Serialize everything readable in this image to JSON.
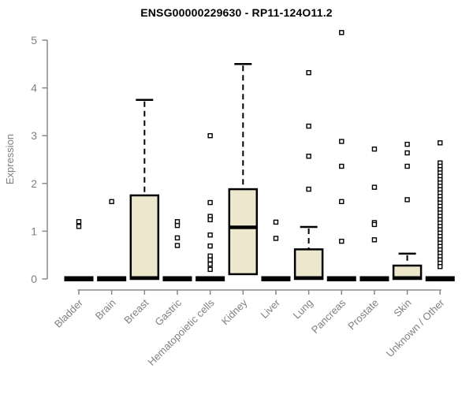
{
  "chart_data": {
    "type": "boxplot",
    "title": "ENSG00000229630 - RP11-124O11.2",
    "ylabel": "Expression",
    "xlabel": "",
    "ylim": [
      0,
      5
    ],
    "yticks": [
      0,
      1,
      2,
      3,
      4,
      5
    ],
    "grid": false,
    "legend": "none",
    "box_fill": "#ede8cd",
    "box_stroke": "#000000",
    "axis_color": "#888888",
    "label_color": "#808080",
    "title_color": "#000000",
    "categories": [
      "Bladder",
      "Brain",
      "Breast",
      "Gastric",
      "Hematopoietic cells",
      "Kidney",
      "Liver",
      "Lung",
      "Pancreas",
      "Prostate",
      "Skin",
      "Unknown / Other"
    ],
    "series": [
      {
        "category": "Bladder",
        "q1": 0,
        "median": 0,
        "q3": 0,
        "whisker_low": 0,
        "whisker_high": 0,
        "outliers": [
          1.2,
          1.1
        ]
      },
      {
        "category": "Brain",
        "q1": 0,
        "median": 0,
        "q3": 0,
        "whisker_low": 0,
        "whisker_high": 0,
        "outliers": [
          1.62
        ]
      },
      {
        "category": "Breast",
        "q1": 0,
        "median": 0.02,
        "q3": 1.75,
        "whisker_low": 0,
        "whisker_high": 3.75,
        "outliers": []
      },
      {
        "category": "Gastric",
        "q1": 0,
        "median": 0,
        "q3": 0,
        "whisker_low": 0,
        "whisker_high": 0,
        "outliers": [
          1.2,
          1.12,
          0.86,
          0.7
        ]
      },
      {
        "category": "Hematopoietic cells",
        "q1": 0,
        "median": 0,
        "q3": 0,
        "whisker_low": 0,
        "whisker_high": 0,
        "outliers": [
          3.0,
          1.6,
          1.31,
          1.24,
          0.92,
          0.69,
          0.48,
          0.4,
          0.31,
          0.2
        ]
      },
      {
        "category": "Kidney",
        "q1": 0.1,
        "median": 1.08,
        "q3": 1.88,
        "whisker_low": 0.1,
        "whisker_high": 4.5,
        "outliers": []
      },
      {
        "category": "Liver",
        "q1": 0,
        "median": 0,
        "q3": 0,
        "whisker_low": 0,
        "whisker_high": 0,
        "outliers": [
          1.19,
          0.85
        ]
      },
      {
        "category": "Lung",
        "q1": 0,
        "median": 0.02,
        "q3": 0.62,
        "whisker_low": 0,
        "whisker_high": 1.09,
        "outliers": [
          4.32,
          3.2,
          2.57,
          1.88
        ]
      },
      {
        "category": "Pancreas",
        "q1": 0,
        "median": 0,
        "q3": 0,
        "whisker_low": 0,
        "whisker_high": 0,
        "outliers": [
          5.16,
          2.88,
          2.36,
          1.62,
          0.79
        ]
      },
      {
        "category": "Prostate",
        "q1": 0,
        "median": 0,
        "q3": 0,
        "whisker_low": 0,
        "whisker_high": 0,
        "outliers": [
          2.72,
          1.92,
          1.18,
          1.14,
          0.82
        ]
      },
      {
        "category": "Skin",
        "q1": 0,
        "median": 0.02,
        "q3": 0.28,
        "whisker_low": 0,
        "whisker_high": 0.53,
        "outliers": [
          2.82,
          2.64,
          2.36,
          1.66
        ]
      },
      {
        "category": "Unknown / Other",
        "q1": 0,
        "median": 0,
        "q3": 0,
        "whisker_low": 0,
        "whisker_high": 0,
        "outliers": [
          2.85,
          2.43,
          2.36,
          2.29,
          2.22,
          2.15,
          2.08,
          2.01,
          1.94,
          1.87,
          1.8,
          1.73,
          1.66,
          1.59,
          1.52,
          1.45,
          1.38,
          1.31,
          1.24,
          1.17,
          1.1,
          1.03,
          0.96,
          0.89,
          0.82,
          0.75,
          0.68,
          0.61,
          0.54,
          0.47,
          0.4,
          0.33,
          0.26
        ]
      }
    ]
  }
}
